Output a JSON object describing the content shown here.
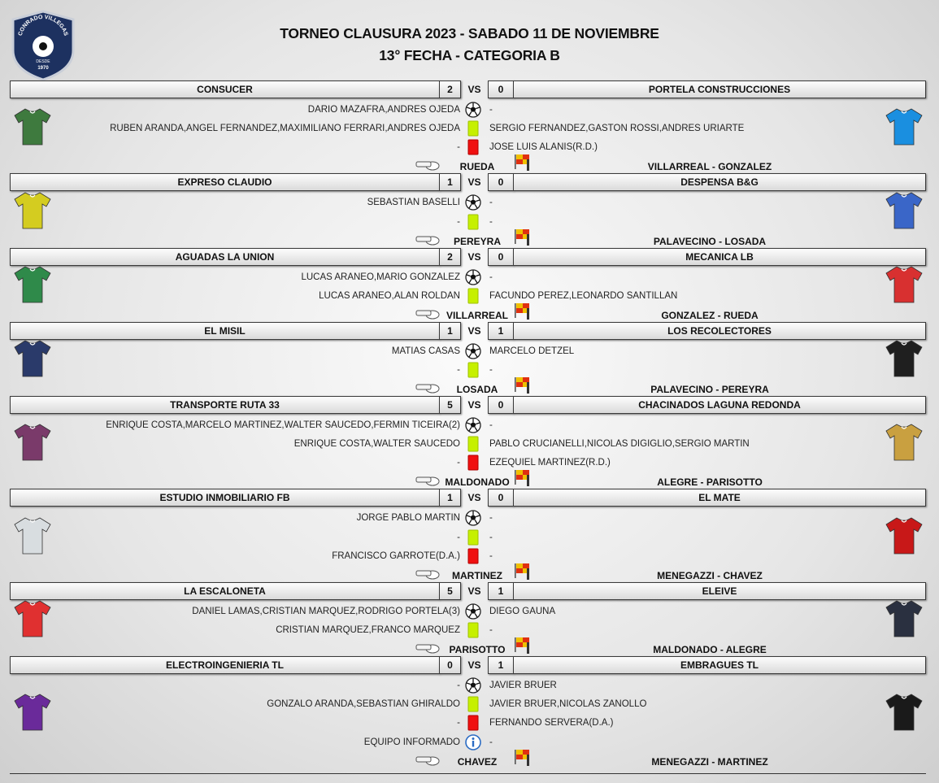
{
  "header": {
    "title": "TORNEO CLAUSURA 2023 - SABADO 11 DE NOVIEMBRE",
    "subtitle": "13° FECHA - CATEGORIA B"
  },
  "logo": {
    "name": "CONRADO VILLEGAS",
    "since": "DESDE",
    "year": "1970"
  },
  "matches": [
    {
      "home": "CONSUCER",
      "home_score": 2,
      "vs": "VS",
      "away_score": 0,
      "away": "PORTELA CONSTRUCCIONES",
      "goals": [
        "DARIO MAZAFRA,ANDRES OJEDA",
        "-"
      ],
      "yellow_cards": [
        "RUBEN ARANDA,ANGEL FERNANDEZ,MAXIMILIANO FERRARI,ANDRES OJEDA",
        "SERGIO FERNANDEZ,GASTON ROSSI,ANDRES URIARTE"
      ],
      "red_cards": [
        "-",
        "JOSE LUIS ALANIS(R.D.)"
      ],
      "referee": "RUEDA",
      "assistants": "VILLARREAL - GONZALEZ"
    },
    {
      "home": "EXPRESO CLAUDIO",
      "home_score": 1,
      "vs": "VS",
      "away_score": 0,
      "away": "DESPENSA B&G",
      "goals": [
        "SEBASTIAN BASELLI",
        "-"
      ],
      "yellow_cards": [
        "-",
        "-"
      ],
      "referee": "PEREYRA",
      "assistants": "PALAVECINO - LOSADA"
    },
    {
      "home": "AGUADAS LA UNION",
      "home_score": 2,
      "vs": "VS",
      "away_score": 0,
      "away": "MECANICA LB",
      "goals": [
        "LUCAS ARANEO,MARIO GONZALEZ",
        "-"
      ],
      "yellow_cards": [
        "LUCAS ARANEO,ALAN ROLDAN",
        "FACUNDO PEREZ,LEONARDO SANTILLAN"
      ],
      "referee": "VILLARREAL",
      "assistants": "GONZALEZ - RUEDA"
    },
    {
      "home": "EL MISIL",
      "home_score": 1,
      "vs": "VS",
      "away_score": 1,
      "away": "LOS RECOLECTORES",
      "goals": [
        "MATIAS CASAS",
        "MARCELO DETZEL"
      ],
      "yellow_cards": [
        "-",
        "-"
      ],
      "referee": "LOSADA",
      "assistants": "PALAVECINO - PEREYRA"
    },
    {
      "home": "TRANSPORTE RUTA 33",
      "home_score": 5,
      "vs": "VS",
      "away_score": 0,
      "away": "CHACINADOS LAGUNA REDONDA",
      "goals": [
        "ENRIQUE COSTA,MARCELO MARTINEZ,WALTER SAUCEDO,FERMIN TICEIRA(2)",
        "-"
      ],
      "yellow_cards": [
        "ENRIQUE COSTA,WALTER SAUCEDO",
        "PABLO CRUCIANELLI,NICOLAS DIGIGLIO,SERGIO MARTIN"
      ],
      "red_cards": [
        "-",
        "EZEQUIEL MARTINEZ(R.D.)"
      ],
      "referee": "MALDONADO",
      "assistants": "ALEGRE - PARISOTTO"
    },
    {
      "home": "ESTUDIO INMOBILIARIO FB",
      "home_score": 1,
      "vs": "VS",
      "away_score": 0,
      "away": "EL MATE",
      "goals": [
        "JORGE PABLO MARTIN",
        "-"
      ],
      "yellow_cards": [
        "-",
        "-"
      ],
      "red_cards": [
        "FRANCISCO GARROTE(D.A.)",
        "-"
      ],
      "referee": "MARTINEZ",
      "assistants": "MENEGAZZI - CHAVEZ"
    },
    {
      "home": "LA ESCALONETA",
      "home_score": 5,
      "vs": "VS",
      "away_score": 1,
      "away": "ELEIVE",
      "goals": [
        "DANIEL LAMAS,CRISTIAN MARQUEZ,RODRIGO PORTELA(3)",
        "DIEGO GAUNA"
      ],
      "yellow_cards": [
        "CRISTIAN MARQUEZ,FRANCO MARQUEZ",
        "-"
      ],
      "referee": "PARISOTTO",
      "assistants": "MALDONADO - ALEGRE"
    },
    {
      "home": "ELECTROINGENIERIA TL",
      "home_score": 0,
      "vs": "VS",
      "away_score": 1,
      "away": "EMBRAGUES TL",
      "goals": [
        "-",
        "JAVIER BRUER"
      ],
      "yellow_cards": [
        "GONZALO ARANDA,SEBASTIAN GHIRALDO",
        "JAVIER BRUER,NICOLAS ZANOLLO"
      ],
      "red_cards": [
        "-",
        "FERNANDO SERVERA(D.A.)"
      ],
      "report": [
        "EQUIPO INFORMADO",
        "-"
      ],
      "referee": "CHAVEZ",
      "assistants": "MENEGAZZI - MARTINEZ"
    }
  ]
}
